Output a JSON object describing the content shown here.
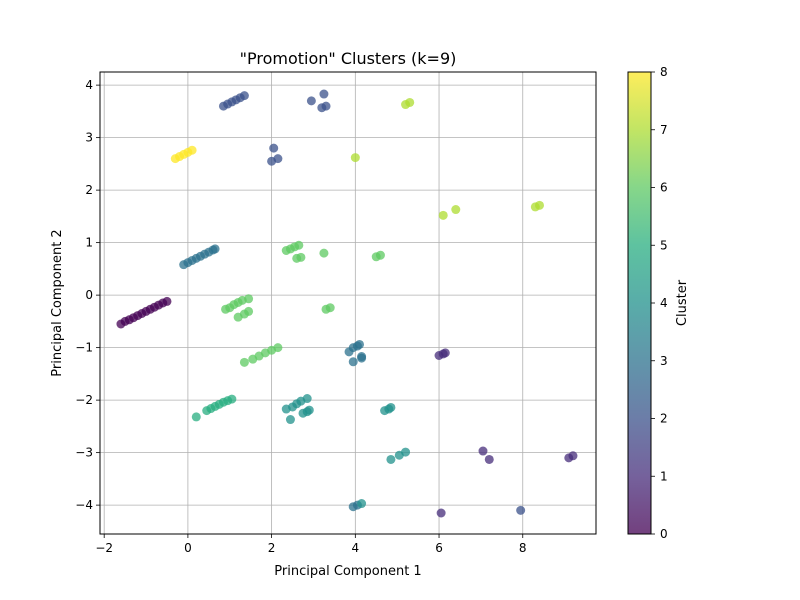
{
  "chart_data": {
    "type": "scatter",
    "title": "\"Promotion\" Clusters (k=9)",
    "xlabel": "Principal Component 1",
    "ylabel": "Principal Component 2",
    "xlim": [
      -2.1,
      9.75
    ],
    "ylim": [
      -4.55,
      4.25
    ],
    "xticks": [
      -2,
      0,
      2,
      4,
      6,
      8
    ],
    "xtick_labels": [
      "−2",
      "0",
      "2",
      "4",
      "6",
      "8"
    ],
    "yticks": [
      -4,
      -3,
      -2,
      -1,
      0,
      1,
      2,
      3,
      4
    ],
    "ytick_labels": [
      "−4",
      "−3",
      "−2",
      "−1",
      "0",
      "1",
      "2",
      "3",
      "4"
    ],
    "grid": true,
    "colorbar": {
      "label": "Cluster",
      "min": 0,
      "max": 8,
      "ticks": [
        0,
        1,
        2,
        3,
        4,
        5,
        6,
        7,
        8
      ],
      "tick_labels": [
        "0",
        "1",
        "2",
        "3",
        "4",
        "5",
        "6",
        "7",
        "8"
      ],
      "colormap": "viridis",
      "colors": [
        "#440154",
        "#472d7b",
        "#3b528b",
        "#2c728e",
        "#21918c",
        "#28ae80",
        "#5ec962",
        "#addc30",
        "#fde725"
      ]
    },
    "marker_alpha": 0.75,
    "points": [
      {
        "x": -1.6,
        "y": -0.55,
        "c": 0
      },
      {
        "x": -1.5,
        "y": -0.5,
        "c": 0
      },
      {
        "x": -1.4,
        "y": -0.47,
        "c": 0
      },
      {
        "x": -1.3,
        "y": -0.43,
        "c": 0
      },
      {
        "x": -1.2,
        "y": -0.39,
        "c": 0
      },
      {
        "x": -1.1,
        "y": -0.35,
        "c": 0
      },
      {
        "x": -1.0,
        "y": -0.31,
        "c": 0
      },
      {
        "x": -0.9,
        "y": -0.27,
        "c": 0
      },
      {
        "x": -0.8,
        "y": -0.23,
        "c": 0
      },
      {
        "x": -0.7,
        "y": -0.19,
        "c": 0
      },
      {
        "x": -0.6,
        "y": -0.15,
        "c": 0
      },
      {
        "x": -0.5,
        "y": -0.12,
        "c": 0
      },
      {
        "x": 6.0,
        "y": -1.15,
        "c": 1
      },
      {
        "x": 6.1,
        "y": -1.12,
        "c": 1
      },
      {
        "x": 6.15,
        "y": -1.1,
        "c": 1
      },
      {
        "x": 7.05,
        "y": -2.97,
        "c": 1
      },
      {
        "x": 7.2,
        "y": -3.13,
        "c": 1
      },
      {
        "x": 9.1,
        "y": -3.1,
        "c": 1
      },
      {
        "x": 9.2,
        "y": -3.06,
        "c": 1
      },
      {
        "x": 6.05,
        "y": -4.15,
        "c": 1
      },
      {
        "x": 7.95,
        "y": -4.1,
        "c": 2
      },
      {
        "x": 0.85,
        "y": 3.6,
        "c": 2
      },
      {
        "x": 0.95,
        "y": 3.64,
        "c": 2
      },
      {
        "x": 1.05,
        "y": 3.68,
        "c": 2
      },
      {
        "x": 1.15,
        "y": 3.72,
        "c": 2
      },
      {
        "x": 1.25,
        "y": 3.76,
        "c": 2
      },
      {
        "x": 1.35,
        "y": 3.8,
        "c": 2
      },
      {
        "x": 3.25,
        "y": 3.83,
        "c": 2
      },
      {
        "x": 2.95,
        "y": 3.7,
        "c": 2
      },
      {
        "x": 3.2,
        "y": 3.57,
        "c": 2
      },
      {
        "x": 3.3,
        "y": 3.6,
        "c": 2
      },
      {
        "x": 2.05,
        "y": 2.8,
        "c": 2
      },
      {
        "x": 2.0,
        "y": 2.55,
        "c": 2
      },
      {
        "x": 2.15,
        "y": 2.6,
        "c": 2
      },
      {
        "x": -0.1,
        "y": 0.58,
        "c": 3
      },
      {
        "x": 0.0,
        "y": 0.62,
        "c": 3
      },
      {
        "x": 0.1,
        "y": 0.66,
        "c": 3
      },
      {
        "x": 0.2,
        "y": 0.7,
        "c": 3
      },
      {
        "x": 0.3,
        "y": 0.74,
        "c": 3
      },
      {
        "x": 0.4,
        "y": 0.78,
        "c": 3
      },
      {
        "x": 0.5,
        "y": 0.82,
        "c": 3
      },
      {
        "x": 0.6,
        "y": 0.86,
        "c": 3
      },
      {
        "x": 0.65,
        "y": 0.88,
        "c": 3
      },
      {
        "x": 3.85,
        "y": -1.08,
        "c": 3
      },
      {
        "x": 3.95,
        "y": -1.0,
        "c": 3
      },
      {
        "x": 4.05,
        "y": -0.97,
        "c": 3
      },
      {
        "x": 4.1,
        "y": -0.94,
        "c": 3
      },
      {
        "x": 4.15,
        "y": -1.17,
        "c": 3
      },
      {
        "x": 4.15,
        "y": -1.2,
        "c": 3
      },
      {
        "x": 3.95,
        "y": -1.27,
        "c": 3
      },
      {
        "x": 3.95,
        "y": -4.03,
        "c": 3
      },
      {
        "x": 4.05,
        "y": -4.0,
        "c": 3
      },
      {
        "x": 4.15,
        "y": -3.97,
        "c": 4
      },
      {
        "x": 4.7,
        "y": -2.2,
        "c": 4
      },
      {
        "x": 4.8,
        "y": -2.17,
        "c": 4
      },
      {
        "x": 4.85,
        "y": -2.14,
        "c": 4
      },
      {
        "x": 4.85,
        "y": -3.13,
        "c": 4
      },
      {
        "x": 5.05,
        "y": -3.05,
        "c": 4
      },
      {
        "x": 5.2,
        "y": -2.99,
        "c": 4
      },
      {
        "x": 2.35,
        "y": -2.17,
        "c": 4
      },
      {
        "x": 2.5,
        "y": -2.13,
        "c": 4
      },
      {
        "x": 2.6,
        "y": -2.07,
        "c": 4
      },
      {
        "x": 2.7,
        "y": -2.02,
        "c": 4
      },
      {
        "x": 2.85,
        "y": -1.97,
        "c": 4
      },
      {
        "x": 2.75,
        "y": -2.25,
        "c": 4
      },
      {
        "x": 2.85,
        "y": -2.22,
        "c": 4
      },
      {
        "x": 2.9,
        "y": -2.19,
        "c": 4
      },
      {
        "x": 2.45,
        "y": -2.37,
        "c": 4
      },
      {
        "x": 0.2,
        "y": -2.32,
        "c": 5
      },
      {
        "x": 0.45,
        "y": -2.2,
        "c": 5
      },
      {
        "x": 0.55,
        "y": -2.16,
        "c": 5
      },
      {
        "x": 0.65,
        "y": -2.12,
        "c": 5
      },
      {
        "x": 0.75,
        "y": -2.08,
        "c": 5
      },
      {
        "x": 0.85,
        "y": -2.04,
        "c": 5
      },
      {
        "x": 0.95,
        "y": -2.01,
        "c": 5
      },
      {
        "x": 1.05,
        "y": -1.98,
        "c": 5
      },
      {
        "x": 1.35,
        "y": -1.28,
        "c": 6
      },
      {
        "x": 1.55,
        "y": -1.22,
        "c": 6
      },
      {
        "x": 1.7,
        "y": -1.16,
        "c": 6
      },
      {
        "x": 1.85,
        "y": -1.1,
        "c": 6
      },
      {
        "x": 2.0,
        "y": -1.05,
        "c": 6
      },
      {
        "x": 2.15,
        "y": -1.0,
        "c": 6
      },
      {
        "x": 0.9,
        "y": -0.27,
        "c": 6
      },
      {
        "x": 1.0,
        "y": -0.24,
        "c": 6
      },
      {
        "x": 1.1,
        "y": -0.18,
        "c": 6
      },
      {
        "x": 1.2,
        "y": -0.14,
        "c": 6
      },
      {
        "x": 1.3,
        "y": -0.1,
        "c": 6
      },
      {
        "x": 1.45,
        "y": -0.07,
        "c": 6
      },
      {
        "x": 1.2,
        "y": -0.42,
        "c": 6
      },
      {
        "x": 1.35,
        "y": -0.36,
        "c": 6
      },
      {
        "x": 1.45,
        "y": -0.31,
        "c": 6
      },
      {
        "x": 2.35,
        "y": 0.85,
        "c": 6
      },
      {
        "x": 2.45,
        "y": 0.88,
        "c": 6
      },
      {
        "x": 2.55,
        "y": 0.92,
        "c": 6
      },
      {
        "x": 2.65,
        "y": 0.95,
        "c": 6
      },
      {
        "x": 2.6,
        "y": 0.7,
        "c": 6
      },
      {
        "x": 2.7,
        "y": 0.72,
        "c": 6
      },
      {
        "x": 3.25,
        "y": 0.8,
        "c": 6
      },
      {
        "x": 3.3,
        "y": -0.27,
        "c": 6
      },
      {
        "x": 3.4,
        "y": -0.24,
        "c": 6
      },
      {
        "x": 4.5,
        "y": 0.73,
        "c": 6
      },
      {
        "x": 4.6,
        "y": 0.76,
        "c": 6
      },
      {
        "x": 4.0,
        "y": 2.62,
        "c": 7
      },
      {
        "x": 5.2,
        "y": 3.63,
        "c": 7
      },
      {
        "x": 5.3,
        "y": 3.67,
        "c": 7
      },
      {
        "x": 6.1,
        "y": 1.52,
        "c": 7
      },
      {
        "x": 6.4,
        "y": 1.63,
        "c": 7
      },
      {
        "x": 8.3,
        "y": 1.68,
        "c": 7
      },
      {
        "x": 8.4,
        "y": 1.71,
        "c": 7
      },
      {
        "x": -0.3,
        "y": 2.6,
        "c": 8
      },
      {
        "x": -0.2,
        "y": 2.64,
        "c": 8
      },
      {
        "x": -0.1,
        "y": 2.68,
        "c": 8
      },
      {
        "x": 0.0,
        "y": 2.72,
        "c": 8
      },
      {
        "x": 0.1,
        "y": 2.76,
        "c": 8
      }
    ]
  }
}
